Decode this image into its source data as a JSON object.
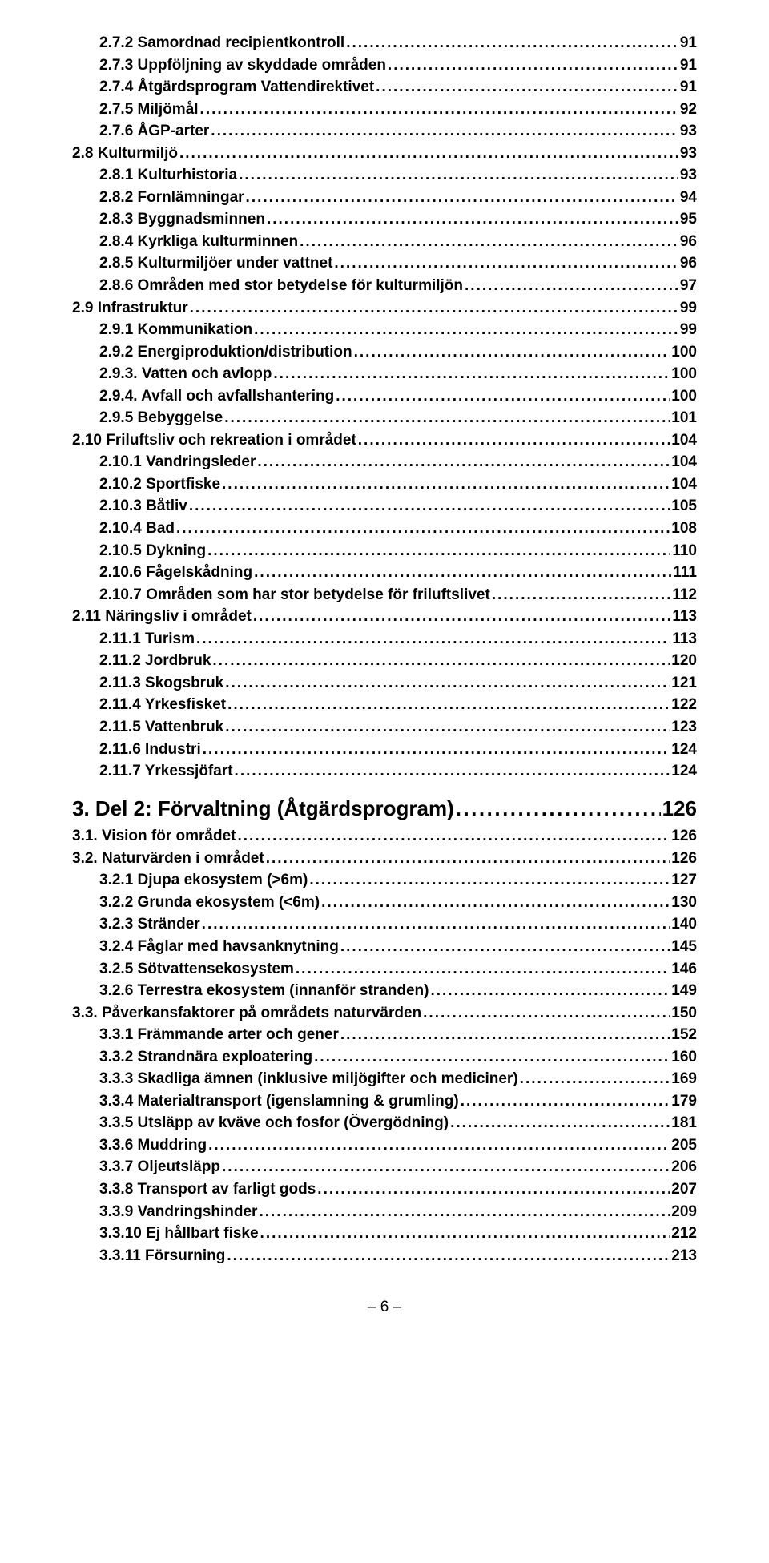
{
  "fonts": {
    "family": "Arial",
    "bold": true,
    "level1_size_pt": 20,
    "level2_size_pt": 14,
    "level3_size_pt": 14
  },
  "colors": {
    "text": "#000000",
    "background": "#ffffff"
  },
  "toc": [
    {
      "level": 3,
      "label": "2.7.2 Samordnad recipientkontroll",
      "page": "91"
    },
    {
      "level": 3,
      "label": "2.7.3 Uppföljning av skyddade områden",
      "page": "91"
    },
    {
      "level": 3,
      "label": "2.7.4 Åtgärdsprogram Vattendirektivet",
      "page": "91"
    },
    {
      "level": 3,
      "label": "2.7.5 Miljömål",
      "page": "92"
    },
    {
      "level": 3,
      "label": "2.7.6 ÅGP-arter",
      "page": "93"
    },
    {
      "level": 2,
      "label": "2.8 Kulturmiljö",
      "page": "93"
    },
    {
      "level": 3,
      "label": "2.8.1 Kulturhistoria",
      "page": "93"
    },
    {
      "level": 3,
      "label": "2.8.2 Fornlämningar",
      "page": "94"
    },
    {
      "level": 3,
      "label": "2.8.3 Byggnadsminnen",
      "page": "95"
    },
    {
      "level": 3,
      "label": "2.8.4 Kyrkliga kulturminnen",
      "page": "96"
    },
    {
      "level": 3,
      "label": "2.8.5 Kulturmiljöer under vattnet",
      "page": "96"
    },
    {
      "level": 3,
      "label": "2.8.6 Områden med stor betydelse för kulturmiljön",
      "page": "97"
    },
    {
      "level": 2,
      "label": "2.9 Infrastruktur",
      "page": "99"
    },
    {
      "level": 3,
      "label": "2.9.1 Kommunikation",
      "page": "99"
    },
    {
      "level": 3,
      "label": "2.9.2 Energiproduktion/distribution",
      "page": "100"
    },
    {
      "level": 3,
      "label": "2.9.3. Vatten och avlopp",
      "page": "100"
    },
    {
      "level": 3,
      "label": "2.9.4. Avfall och avfallshantering",
      "page": "100"
    },
    {
      "level": 3,
      "label": "2.9.5 Bebyggelse",
      "page": "101"
    },
    {
      "level": 2,
      "label": "2.10 Friluftsliv och rekreation i området",
      "page": "104"
    },
    {
      "level": 3,
      "label": "2.10.1 Vandringsleder",
      "page": "104"
    },
    {
      "level": 3,
      "label": "2.10.2 Sportfiske",
      "page": "104"
    },
    {
      "level": 3,
      "label": "2.10.3 Båtliv",
      "page": "105"
    },
    {
      "level": 3,
      "label": "2.10.4 Bad",
      "page": "108"
    },
    {
      "level": 3,
      "label": "2.10.5 Dykning",
      "page": "110"
    },
    {
      "level": 3,
      "label": "2.10.6 Fågelskådning",
      "page": "111"
    },
    {
      "level": 3,
      "label": "2.10.7 Områden som har stor betydelse för friluftslivet",
      "page": "112"
    },
    {
      "level": 2,
      "label": "2.11 Näringsliv i området",
      "page": "113"
    },
    {
      "level": 3,
      "label": "2.11.1 Turism",
      "page": "113"
    },
    {
      "level": 3,
      "label": "2.11.2 Jordbruk",
      "page": "120"
    },
    {
      "level": 3,
      "label": "2.11.3 Skogsbruk",
      "page": "121"
    },
    {
      "level": 3,
      "label": "2.11.4 Yrkesfisket",
      "page": "122"
    },
    {
      "level": 3,
      "label": "2.11.5 Vattenbruk",
      "page": "123"
    },
    {
      "level": 3,
      "label": "2.11.6 Industri",
      "page": "124"
    },
    {
      "level": 3,
      "label": "2.11.7 Yrkessjöfart",
      "page": "124"
    },
    {
      "level": 1,
      "label": "3.    Del 2: Förvaltning (Åtgärdsprogram)",
      "page": "126"
    },
    {
      "level": 2,
      "label": "3.1. Vision för området",
      "page": "126"
    },
    {
      "level": 2,
      "label": "3.2. Naturvärden i området",
      "page": "126"
    },
    {
      "level": 3,
      "label": "3.2.1 Djupa ekosystem (>6m)",
      "page": "127"
    },
    {
      "level": 3,
      "label": "3.2.2 Grunda ekosystem (<6m)",
      "page": "130"
    },
    {
      "level": 3,
      "label": "3.2.3 Stränder",
      "page": "140"
    },
    {
      "level": 3,
      "label": "3.2.4      Fåglar med havsanknytning",
      "page": "145"
    },
    {
      "level": 3,
      "label": "3.2.5 Sötvattensekosystem",
      "page": "146"
    },
    {
      "level": 3,
      "label": "3.2.6 Terrestra ekosystem (innanför stranden)",
      "page": "149"
    },
    {
      "level": 2,
      "label": "3.3. Påverkansfaktorer på områdets naturvärden",
      "page": "150"
    },
    {
      "level": 3,
      "label": "3.3.1 Främmande arter och gener",
      "page": "152"
    },
    {
      "level": 3,
      "label": "3.3.2 Strandnära exploatering",
      "page": "160"
    },
    {
      "level": 3,
      "label": "3.3.3 Skadliga ämnen (inklusive miljögifter och mediciner)",
      "page": "169"
    },
    {
      "level": 3,
      "label": "3.3.4 Materialtransport (igenslamning & grumling)",
      "page": "179"
    },
    {
      "level": 3,
      "label": "3.3.5 Utsläpp av kväve och fosfor (Övergödning)",
      "page": "181"
    },
    {
      "level": 3,
      "label": "3.3.6 Muddring",
      "page": "205"
    },
    {
      "level": 3,
      "label": "3.3.7 Oljeutsläpp",
      "page": "206"
    },
    {
      "level": 3,
      "label": "3.3.8 Transport av farligt gods",
      "page": "207"
    },
    {
      "level": 3,
      "label": "3.3.9 Vandringshinder",
      "page": "209"
    },
    {
      "level": 3,
      "label": "3.3.10 Ej hållbart fiske",
      "page": "212"
    },
    {
      "level": 3,
      "label": "3.3.11 Försurning",
      "page": "213"
    }
  ],
  "footer": "– 6 –"
}
